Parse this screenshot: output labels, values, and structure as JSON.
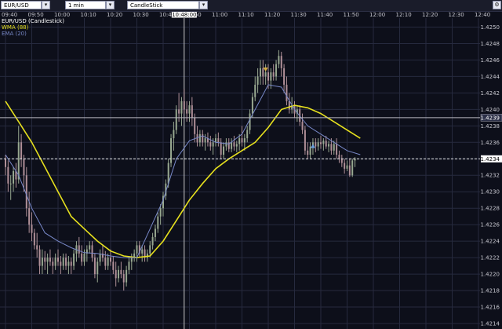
{
  "toolbar": {
    "symbol": "EUR/USD",
    "interval": "1 min",
    "chart_type": "CandleStick",
    "icon": "gear-icon"
  },
  "colors": {
    "background": "#0d0f1a",
    "grid": "#262a3e",
    "wma": "#e6e01e",
    "ema": "#7888c8",
    "candle_up": "#98a890",
    "candle_down": "#b09098",
    "axis_text": "#c8c8d0",
    "current_price_line": "#e8e8e8",
    "arrow_down": "#d8b040",
    "arrow_up": "#6aa0e0"
  },
  "chart_data": {
    "type": "candlestick",
    "legend": [
      "EUR/USD (Candlestick)",
      "WMA (88)",
      "EMA (20)"
    ],
    "time_labels": [
      "09:40",
      "09:50",
      "10:00",
      "10:10",
      "10:20",
      "10:30",
      "10:40",
      "10:50",
      "11:00",
      "11:10",
      "11:20",
      "11:30",
      "11:40",
      "11:50",
      "12:00",
      "12:10",
      "12:20",
      "12:30",
      "12:40"
    ],
    "crosshair_time_label": "10:48:00",
    "price_ticks": [
      "1.4250",
      "1.4248",
      "1.4246",
      "1.4244",
      "1.4242",
      "1.4240",
      "1.4238",
      "1.4236",
      "1.4234",
      "1.4232",
      "1.4230",
      "1.4228",
      "1.4226",
      "1.4224",
      "1.4222",
      "1.4220",
      "1.4218",
      "1.4216",
      "1.4214"
    ],
    "ylim": [
      1.4214,
      1.4251
    ],
    "crosshair_price": "1.4239",
    "current_price": "1.4234",
    "start_time": "09:40",
    "minutes_per_candle": 1,
    "wma": [
      [
        0,
        1.4241
      ],
      [
        5,
        1.42385
      ],
      [
        10,
        1.4236
      ],
      [
        15,
        1.4233
      ],
      [
        20,
        1.423
      ],
      [
        25,
        1.4227
      ],
      [
        30,
        1.42255
      ],
      [
        35,
        1.4224
      ],
      [
        40,
        1.42228
      ],
      [
        45,
        1.42222
      ],
      [
        50,
        1.4222
      ],
      [
        55,
        1.42222
      ],
      [
        60,
        1.4224
      ],
      [
        65,
        1.42265
      ],
      [
        70,
        1.4229
      ],
      [
        75,
        1.4231
      ],
      [
        80,
        1.42328
      ],
      [
        85,
        1.4234
      ],
      [
        90,
        1.4235
      ],
      [
        95,
        1.4236
      ],
      [
        100,
        1.42378
      ],
      [
        105,
        1.424
      ],
      [
        110,
        1.42405
      ],
      [
        115,
        1.42402
      ],
      [
        120,
        1.42395
      ],
      [
        125,
        1.42385
      ],
      [
        130,
        1.42375
      ],
      [
        135,
        1.42365
      ]
    ],
    "ema": [
      [
        0,
        1.42345
      ],
      [
        5,
        1.4232
      ],
      [
        10,
        1.4228
      ],
      [
        15,
        1.4225
      ],
      [
        20,
        1.4224
      ],
      [
        25,
        1.42232
      ],
      [
        30,
        1.42226
      ],
      [
        35,
        1.42225
      ],
      [
        40,
        1.42222
      ],
      [
        45,
        1.4222
      ],
      [
        50,
        1.4222
      ],
      [
        55,
        1.42255
      ],
      [
        60,
        1.4229
      ],
      [
        65,
        1.4234
      ],
      [
        70,
        1.42362
      ],
      [
        75,
        1.42368
      ],
      [
        80,
        1.4236
      ],
      [
        85,
        1.42358
      ],
      [
        90,
        1.4237
      ],
      [
        95,
        1.424
      ],
      [
        100,
        1.4243
      ],
      [
        105,
        1.42427
      ],
      [
        110,
        1.424
      ],
      [
        115,
        1.4238
      ],
      [
        120,
        1.4237
      ],
      [
        125,
        1.4236
      ],
      [
        130,
        1.4235
      ],
      [
        135,
        1.42345
      ]
    ],
    "candles": [
      {
        "o": 1.4234,
        "h": 1.42345,
        "l": 1.4232,
        "c": 1.4233
      },
      {
        "o": 1.4233,
        "h": 1.42338,
        "l": 1.423,
        "c": 1.4231
      },
      {
        "o": 1.4231,
        "h": 1.4232,
        "l": 1.4229,
        "c": 1.4231
      },
      {
        "o": 1.4231,
        "h": 1.4233,
        "l": 1.423,
        "c": 1.42325
      },
      {
        "o": 1.42325,
        "h": 1.42335,
        "l": 1.42305,
        "c": 1.42315
      },
      {
        "o": 1.42315,
        "h": 1.4238,
        "l": 1.4231,
        "c": 1.4236
      },
      {
        "o": 1.4236,
        "h": 1.4237,
        "l": 1.4233,
        "c": 1.4234
      },
      {
        "o": 1.4234,
        "h": 1.42345,
        "l": 1.423,
        "c": 1.4232
      },
      {
        "o": 1.4232,
        "h": 1.4233,
        "l": 1.4227,
        "c": 1.4228
      },
      {
        "o": 1.4228,
        "h": 1.423,
        "l": 1.4225,
        "c": 1.4226
      },
      {
        "o": 1.4226,
        "h": 1.42275,
        "l": 1.4224,
        "c": 1.4225
      },
      {
        "o": 1.4225,
        "h": 1.42255,
        "l": 1.4223,
        "c": 1.42235
      },
      {
        "o": 1.42235,
        "h": 1.4225,
        "l": 1.4222,
        "c": 1.4223
      },
      {
        "o": 1.4223,
        "h": 1.42235,
        "l": 1.422,
        "c": 1.4221
      },
      {
        "o": 1.4221,
        "h": 1.4223,
        "l": 1.422,
        "c": 1.4222
      },
      {
        "o": 1.4222,
        "h": 1.42228,
        "l": 1.42205,
        "c": 1.42215
      },
      {
        "o": 1.42215,
        "h": 1.42225,
        "l": 1.422,
        "c": 1.4222
      },
      {
        "o": 1.4222,
        "h": 1.4223,
        "l": 1.4221,
        "c": 1.42215
      },
      {
        "o": 1.42215,
        "h": 1.4222,
        "l": 1.422,
        "c": 1.4221
      },
      {
        "o": 1.4221,
        "h": 1.42225,
        "l": 1.42205,
        "c": 1.4222
      },
      {
        "o": 1.4222,
        "h": 1.4223,
        "l": 1.4221,
        "c": 1.42215
      },
      {
        "o": 1.42215,
        "h": 1.42222,
        "l": 1.422,
        "c": 1.4221
      },
      {
        "o": 1.4221,
        "h": 1.42225,
        "l": 1.42205,
        "c": 1.4222
      },
      {
        "o": 1.4222,
        "h": 1.42225,
        "l": 1.42205,
        "c": 1.4221
      },
      {
        "o": 1.4221,
        "h": 1.42222,
        "l": 1.422,
        "c": 1.42215
      },
      {
        "o": 1.42215,
        "h": 1.4222,
        "l": 1.422,
        "c": 1.4221
      },
      {
        "o": 1.4221,
        "h": 1.4223,
        "l": 1.42205,
        "c": 1.42225
      },
      {
        "o": 1.42225,
        "h": 1.4224,
        "l": 1.42215,
        "c": 1.42235
      },
      {
        "o": 1.42235,
        "h": 1.42245,
        "l": 1.4222,
        "c": 1.42225
      },
      {
        "o": 1.42225,
        "h": 1.42235,
        "l": 1.4221,
        "c": 1.42215
      },
      {
        "o": 1.42215,
        "h": 1.4223,
        "l": 1.4221,
        "c": 1.42225
      },
      {
        "o": 1.42225,
        "h": 1.42235,
        "l": 1.42215,
        "c": 1.4223
      },
      {
        "o": 1.4223,
        "h": 1.4224,
        "l": 1.42225,
        "c": 1.42235
      },
      {
        "o": 1.42235,
        "h": 1.4224,
        "l": 1.42215,
        "c": 1.4222
      },
      {
        "o": 1.4222,
        "h": 1.42225,
        "l": 1.42195,
        "c": 1.422
      },
      {
        "o": 1.422,
        "h": 1.4222,
        "l": 1.4219,
        "c": 1.42215
      },
      {
        "o": 1.42215,
        "h": 1.4223,
        "l": 1.4221,
        "c": 1.42225
      },
      {
        "o": 1.42225,
        "h": 1.42235,
        "l": 1.42215,
        "c": 1.4222
      },
      {
        "o": 1.4222,
        "h": 1.42228,
        "l": 1.42205,
        "c": 1.4221
      },
      {
        "o": 1.4221,
        "h": 1.42225,
        "l": 1.42205,
        "c": 1.4222
      },
      {
        "o": 1.4222,
        "h": 1.4223,
        "l": 1.4221,
        "c": 1.42215
      },
      {
        "o": 1.42215,
        "h": 1.42222,
        "l": 1.422,
        "c": 1.42205
      },
      {
        "o": 1.42205,
        "h": 1.42215,
        "l": 1.42185,
        "c": 1.42195
      },
      {
        "o": 1.42195,
        "h": 1.4221,
        "l": 1.4219,
        "c": 1.42205
      },
      {
        "o": 1.42205,
        "h": 1.42215,
        "l": 1.42195,
        "c": 1.422
      },
      {
        "o": 1.422,
        "h": 1.42205,
        "l": 1.4218,
        "c": 1.4219
      },
      {
        "o": 1.4219,
        "h": 1.4221,
        "l": 1.42185,
        "c": 1.42205
      },
      {
        "o": 1.42205,
        "h": 1.4222,
        "l": 1.422,
        "c": 1.42215
      },
      {
        "o": 1.42215,
        "h": 1.42225,
        "l": 1.42205,
        "c": 1.4222
      },
      {
        "o": 1.4222,
        "h": 1.4223,
        "l": 1.42215,
        "c": 1.42225
      },
      {
        "o": 1.42225,
        "h": 1.4224,
        "l": 1.42215,
        "c": 1.42235
      },
      {
        "o": 1.42235,
        "h": 1.4224,
        "l": 1.4222,
        "c": 1.42225
      },
      {
        "o": 1.42225,
        "h": 1.42235,
        "l": 1.42215,
        "c": 1.4223
      },
      {
        "o": 1.4223,
        "h": 1.42235,
        "l": 1.42215,
        "c": 1.4222
      },
      {
        "o": 1.4222,
        "h": 1.4223,
        "l": 1.42215,
        "c": 1.42225
      },
      {
        "o": 1.42225,
        "h": 1.4224,
        "l": 1.4222,
        "c": 1.42235
      },
      {
        "o": 1.42235,
        "h": 1.4225,
        "l": 1.4223,
        "c": 1.42245
      },
      {
        "o": 1.42245,
        "h": 1.4226,
        "l": 1.4224,
        "c": 1.42255
      },
      {
        "o": 1.42255,
        "h": 1.42275,
        "l": 1.4225,
        "c": 1.4227
      },
      {
        "o": 1.4227,
        "h": 1.42285,
        "l": 1.4226,
        "c": 1.4228
      },
      {
        "o": 1.4228,
        "h": 1.423,
        "l": 1.4227,
        "c": 1.42295
      },
      {
        "o": 1.42295,
        "h": 1.42315,
        "l": 1.4229,
        "c": 1.4231
      },
      {
        "o": 1.4231,
        "h": 1.4234,
        "l": 1.42305,
        "c": 1.42335
      },
      {
        "o": 1.42335,
        "h": 1.4237,
        "l": 1.4233,
        "c": 1.42365
      },
      {
        "o": 1.42365,
        "h": 1.42385,
        "l": 1.4235,
        "c": 1.42375
      },
      {
        "o": 1.42375,
        "h": 1.42405,
        "l": 1.4237,
        "c": 1.424
      },
      {
        "o": 1.424,
        "h": 1.4242,
        "l": 1.42385,
        "c": 1.42395
      },
      {
        "o": 1.42395,
        "h": 1.42415,
        "l": 1.4238,
        "c": 1.4241
      },
      {
        "o": 1.4241,
        "h": 1.42425,
        "l": 1.42395,
        "c": 1.424
      },
      {
        "o": 1.424,
        "h": 1.4241,
        "l": 1.42385,
        "c": 1.42395
      },
      {
        "o": 1.42395,
        "h": 1.4241,
        "l": 1.42385,
        "c": 1.42405
      },
      {
        "o": 1.42405,
        "h": 1.42415,
        "l": 1.4238,
        "c": 1.4239
      },
      {
        "o": 1.4239,
        "h": 1.42395,
        "l": 1.4236,
        "c": 1.4237
      },
      {
        "o": 1.4237,
        "h": 1.4238,
        "l": 1.42355,
        "c": 1.4236
      },
      {
        "o": 1.4236,
        "h": 1.42375,
        "l": 1.42355,
        "c": 1.4237
      },
      {
        "o": 1.4237,
        "h": 1.42375,
        "l": 1.42355,
        "c": 1.4236
      },
      {
        "o": 1.4236,
        "h": 1.4237,
        "l": 1.4235,
        "c": 1.42365
      },
      {
        "o": 1.42365,
        "h": 1.42372,
        "l": 1.42355,
        "c": 1.4236
      },
      {
        "o": 1.4236,
        "h": 1.42368,
        "l": 1.4235,
        "c": 1.42355
      },
      {
        "o": 1.42355,
        "h": 1.42365,
        "l": 1.42345,
        "c": 1.4236
      },
      {
        "o": 1.4236,
        "h": 1.4237,
        "l": 1.42355,
        "c": 1.42365
      },
      {
        "o": 1.42365,
        "h": 1.42372,
        "l": 1.42355,
        "c": 1.4236
      },
      {
        "o": 1.4236,
        "h": 1.42365,
        "l": 1.4234,
        "c": 1.42345
      },
      {
        "o": 1.42345,
        "h": 1.4236,
        "l": 1.4234,
        "c": 1.42355
      },
      {
        "o": 1.42355,
        "h": 1.42365,
        "l": 1.4235,
        "c": 1.4236
      },
      {
        "o": 1.4236,
        "h": 1.42365,
        "l": 1.42348,
        "c": 1.42352
      },
      {
        "o": 1.42352,
        "h": 1.42365,
        "l": 1.42348,
        "c": 1.4236
      },
      {
        "o": 1.4236,
        "h": 1.42368,
        "l": 1.4235,
        "c": 1.42355
      },
      {
        "o": 1.42355,
        "h": 1.42362,
        "l": 1.42348,
        "c": 1.42358
      },
      {
        "o": 1.42358,
        "h": 1.4237,
        "l": 1.4235,
        "c": 1.42365
      },
      {
        "o": 1.42365,
        "h": 1.4238,
        "l": 1.42355,
        "c": 1.4236
      },
      {
        "o": 1.4236,
        "h": 1.4237,
        "l": 1.4235,
        "c": 1.42365
      },
      {
        "o": 1.42365,
        "h": 1.4238,
        "l": 1.4236,
        "c": 1.42375
      },
      {
        "o": 1.42375,
        "h": 1.424,
        "l": 1.4237,
        "c": 1.42395
      },
      {
        "o": 1.42395,
        "h": 1.4242,
        "l": 1.4239,
        "c": 1.42415
      },
      {
        "o": 1.42415,
        "h": 1.4244,
        "l": 1.4241,
        "c": 1.4243
      },
      {
        "o": 1.4243,
        "h": 1.4245,
        "l": 1.4242,
        "c": 1.4244
      },
      {
        "o": 1.4244,
        "h": 1.4246,
        "l": 1.4243,
        "c": 1.4245
      },
      {
        "o": 1.4245,
        "h": 1.4246,
        "l": 1.4243,
        "c": 1.4244
      },
      {
        "o": 1.4244,
        "h": 1.42455,
        "l": 1.4243,
        "c": 1.42445
      },
      {
        "o": 1.42445,
        "h": 1.42455,
        "l": 1.42425,
        "c": 1.42435
      },
      {
        "o": 1.42435,
        "h": 1.4245,
        "l": 1.42425,
        "c": 1.42445
      },
      {
        "o": 1.42445,
        "h": 1.42455,
        "l": 1.42435,
        "c": 1.4244
      },
      {
        "o": 1.4244,
        "h": 1.4246,
        "l": 1.42435,
        "c": 1.42455
      },
      {
        "o": 1.42455,
        "h": 1.42472,
        "l": 1.4245,
        "c": 1.42465
      },
      {
        "o": 1.42465,
        "h": 1.4247,
        "l": 1.4244,
        "c": 1.4245
      },
      {
        "o": 1.4245,
        "h": 1.42455,
        "l": 1.4242,
        "c": 1.4243
      },
      {
        "o": 1.4243,
        "h": 1.4244,
        "l": 1.42405,
        "c": 1.4241
      },
      {
        "o": 1.4241,
        "h": 1.4242,
        "l": 1.42395,
        "c": 1.424
      },
      {
        "o": 1.424,
        "h": 1.42415,
        "l": 1.42395,
        "c": 1.42405
      },
      {
        "o": 1.42405,
        "h": 1.4241,
        "l": 1.4239,
        "c": 1.42395
      },
      {
        "o": 1.42395,
        "h": 1.42405,
        "l": 1.42385,
        "c": 1.424
      },
      {
        "o": 1.424,
        "h": 1.42405,
        "l": 1.4238,
        "c": 1.42385
      },
      {
        "o": 1.42385,
        "h": 1.42395,
        "l": 1.4237,
        "c": 1.42375
      },
      {
        "o": 1.42375,
        "h": 1.4238,
        "l": 1.42345,
        "c": 1.4235
      },
      {
        "o": 1.4235,
        "h": 1.4236,
        "l": 1.4234,
        "c": 1.42345
      },
      {
        "o": 1.42345,
        "h": 1.4236,
        "l": 1.4234,
        "c": 1.42355
      },
      {
        "o": 1.42355,
        "h": 1.42365,
        "l": 1.42345,
        "c": 1.4236
      },
      {
        "o": 1.4236,
        "h": 1.42365,
        "l": 1.42348,
        "c": 1.42355
      },
      {
        "o": 1.42355,
        "h": 1.42365,
        "l": 1.4235,
        "c": 1.4236
      },
      {
        "o": 1.4236,
        "h": 1.42368,
        "l": 1.42352,
        "c": 1.42358
      },
      {
        "o": 1.42358,
        "h": 1.42365,
        "l": 1.4235,
        "c": 1.42362
      },
      {
        "o": 1.42362,
        "h": 1.42368,
        "l": 1.42352,
        "c": 1.42355
      },
      {
        "o": 1.42355,
        "h": 1.42362,
        "l": 1.42348,
        "c": 1.42358
      },
      {
        "o": 1.42358,
        "h": 1.42365,
        "l": 1.42345,
        "c": 1.4235
      },
      {
        "o": 1.4235,
        "h": 1.42362,
        "l": 1.42345,
        "c": 1.42358
      },
      {
        "o": 1.42358,
        "h": 1.42365,
        "l": 1.4234,
        "c": 1.42345
      },
      {
        "o": 1.42345,
        "h": 1.4235,
        "l": 1.42335,
        "c": 1.4234
      },
      {
        "o": 1.4234,
        "h": 1.42345,
        "l": 1.4233,
        "c": 1.42335
      },
      {
        "o": 1.42335,
        "h": 1.4234,
        "l": 1.42322,
        "c": 1.42328
      },
      {
        "o": 1.42328,
        "h": 1.42338,
        "l": 1.42325,
        "c": 1.42332
      },
      {
        "o": 1.42332,
        "h": 1.4234,
        "l": 1.42318,
        "c": 1.4232
      },
      {
        "o": 1.4232,
        "h": 1.4234,
        "l": 1.42318,
        "c": 1.42338
      },
      {
        "o": 1.42338,
        "h": 1.42342,
        "l": 1.4233,
        "c": 1.4234
      }
    ],
    "markers": [
      {
        "type": "arrow-down",
        "index": 99,
        "price": 1.42448
      },
      {
        "type": "arrow-up",
        "index": 117,
        "price": 1.42356
      }
    ]
  }
}
